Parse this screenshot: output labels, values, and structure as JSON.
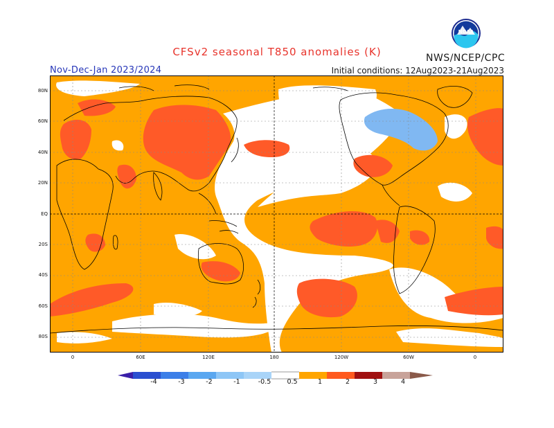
{
  "title": "CFSv2 seasonal T850 anomalies (K)",
  "agency": "NWS/NCEP/CPC",
  "logo_text": "NOAA",
  "period": "Nov-Dec-Jan 2023/2024",
  "initial_conditions": "Initial conditions: 12Aug2023-21Aug2023",
  "lat_labels": [
    "80N",
    "60N",
    "40N",
    "20N",
    "EQ",
    "20S",
    "40S",
    "60S",
    "80S"
  ],
  "lon_labels": [
    "0",
    "60E",
    "120E",
    "180",
    "120W",
    "60W",
    "0"
  ],
  "legend": {
    "ticks": [
      "-4",
      "-3",
      "-2",
      "-1",
      "-0.5",
      "0.5",
      "1",
      "2",
      "3",
      "4"
    ],
    "colors": [
      "#3a1fa8",
      "#2a4fd0",
      "#3c7fe8",
      "#5aa7f0",
      "#8ec6f6",
      "#ffffff",
      "#ffa500",
      "#ff5a1e",
      "#e8281e",
      "#a01010",
      "#c8a39a",
      "#8a5a4a"
    ]
  },
  "colors": {
    "pos1": "#ffa500",
    "pos2": "#ff5a28",
    "neg1": "#80b8f2",
    "neutral": "#ffffff",
    "title": "#e8332b",
    "period": "#2535b8"
  }
}
